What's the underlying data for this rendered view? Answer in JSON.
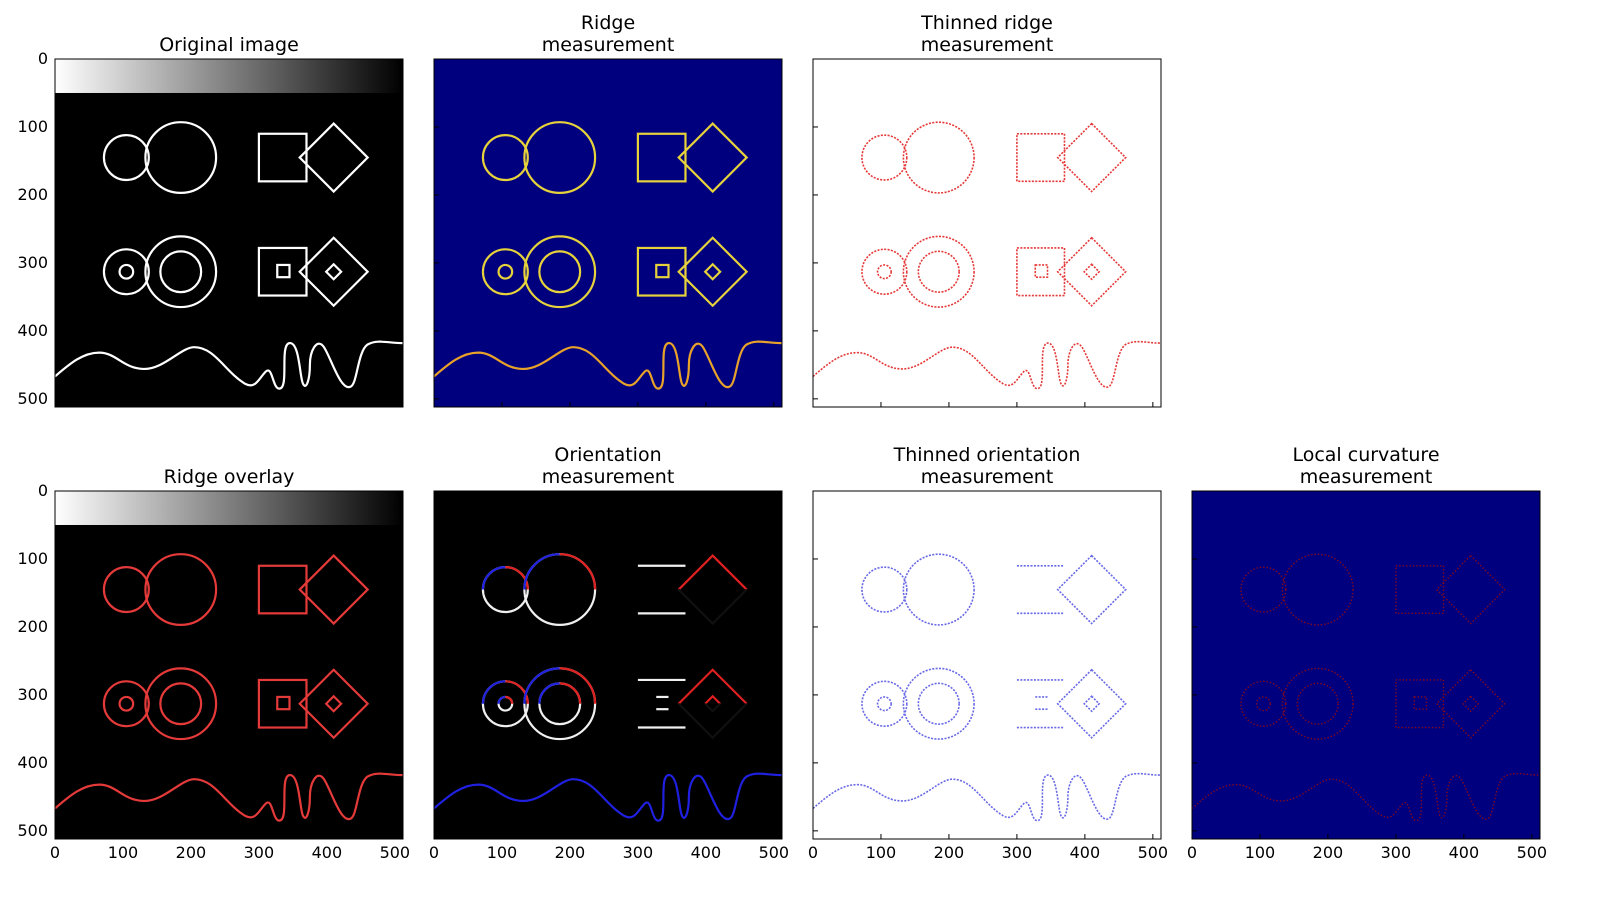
{
  "chart_data": [
    {
      "type": "image",
      "title_lines": [
        "Original image"
      ],
      "colormap": "gray",
      "style": "original",
      "shows_x_ticks": false,
      "shows_y_ticks": true,
      "xlim": [
        0,
        512
      ],
      "ylim": [
        512,
        0
      ]
    },
    {
      "type": "image",
      "title_lines": [
        "Ridge",
        "measurement"
      ],
      "colormap": "jet",
      "style": "ridge",
      "shows_x_ticks": false,
      "shows_y_ticks": false,
      "xlim": [
        0,
        512
      ],
      "ylim": [
        512,
        0
      ]
    },
    {
      "type": "image",
      "title_lines": [
        "Thinned ridge",
        "measurement"
      ],
      "colormap": "jet-on-white",
      "style": "thin-ridge",
      "shows_x_ticks": false,
      "shows_y_ticks": false,
      "xlim": [
        0,
        512
      ],
      "ylim": [
        512,
        0
      ]
    },
    {
      "type": "image",
      "title_lines": [
        "Ridge overlay"
      ],
      "colormap": "gray-with-red-overlay",
      "style": "overlay",
      "shows_x_ticks": true,
      "shows_y_ticks": true,
      "xlim": [
        0,
        512
      ],
      "ylim": [
        512,
        0
      ]
    },
    {
      "type": "image",
      "title_lines": [
        "Orientation",
        "measurement"
      ],
      "colormap": "bwr-on-black",
      "style": "orientation",
      "shows_x_ticks": true,
      "shows_y_ticks": false,
      "xlim": [
        0,
        512
      ],
      "ylim": [
        512,
        0
      ]
    },
    {
      "type": "image",
      "title_lines": [
        "Thinned orientation",
        "measurement"
      ],
      "colormap": "bwr-on-white",
      "style": "thin-orientation",
      "shows_x_ticks": true,
      "shows_y_ticks": false,
      "xlim": [
        0,
        512
      ],
      "ylim": [
        512,
        0
      ]
    },
    {
      "type": "image",
      "title_lines": [
        "Local curvature",
        "measurement"
      ],
      "colormap": "jet",
      "style": "curvature",
      "shows_x_ticks": true,
      "shows_y_ticks": false,
      "xlim": [
        0,
        512
      ],
      "ylim": [
        512,
        0
      ]
    }
  ],
  "x_tick_values": [
    0,
    100,
    200,
    300,
    400,
    500
  ],
  "y_tick_values": [
    0,
    100,
    200,
    300,
    400,
    500
  ],
  "colors": {
    "jet_background": "#00007f",
    "ridge_red": "#e53a3a",
    "orientation_blue": "#2020e0"
  }
}
